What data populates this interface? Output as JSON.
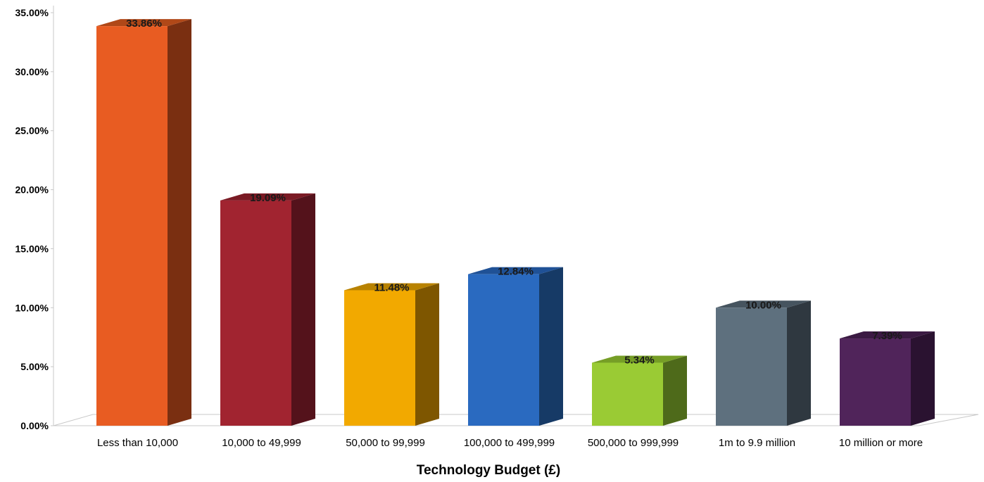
{
  "chart_data": {
    "type": "bar",
    "title": "",
    "xlabel": "Technology Budget (£)",
    "ylabel": "",
    "ylim": [
      0,
      35
    ],
    "y_ticks": [
      "0.00%",
      "5.00%",
      "10.00%",
      "15.00%",
      "20.00%",
      "25.00%",
      "30.00%",
      "35.00%"
    ],
    "grid": false,
    "legend": "none",
    "categories": [
      "Less than 10,000",
      "10,000 to 49,999",
      "50,000 to 99,999",
      "100,000 to 499,999",
      "500,000 to 999,999",
      "1m to 9.9 million",
      "10 million or more"
    ],
    "values": [
      33.86,
      19.09,
      11.48,
      12.84,
      5.34,
      10.0,
      7.39
    ],
    "data_labels": [
      "33.86%",
      "19.09%",
      "11.48%",
      "12.84%",
      "5.34%",
      "10.00%",
      "7.39%"
    ],
    "colors": [
      {
        "front": "#E85C22",
        "side": "#7A2F11",
        "top": "#B04818"
      },
      {
        "front": "#A12430",
        "side": "#54121B",
        "top": "#7A1A24"
      },
      {
        "front": "#F2A900",
        "side": "#7E5600",
        "top": "#B88200"
      },
      {
        "front": "#2A6AC0",
        "side": "#163A66",
        "top": "#1F5196"
      },
      {
        "front": "#9ACB34",
        "side": "#4E6A1A",
        "top": "#769E26"
      },
      {
        "front": "#5E707E",
        "side": "#2F3840",
        "top": "#46545F"
      },
      {
        "front": "#50245A",
        "side": "#2A1230",
        "top": "#3B1A43"
      }
    ]
  }
}
